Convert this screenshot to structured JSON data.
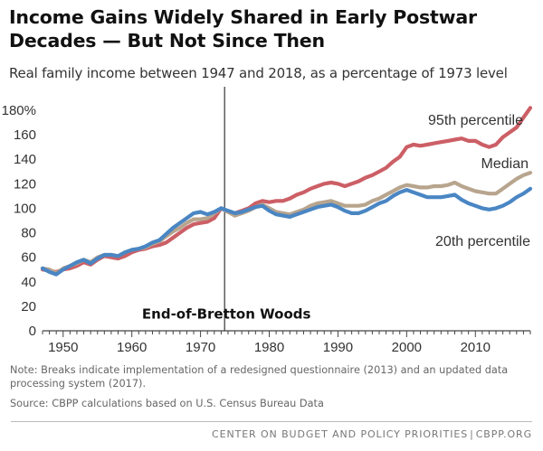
{
  "header": {
    "title": "Income Gains Widely Shared in Early Postwar Decades — But Not Since Then",
    "subtitle": "Real family income between 1947 and 2018, as a percentage of 1973 level"
  },
  "footer": {
    "note": "Note: Breaks indicate implementation of a redesigned questionnaire (2013) and an updated data processing system (2017).",
    "source": "Source: CBPP calculations based on U.S. Census Bureau Data",
    "org": "CENTER ON BUDGET AND POLICY PRIORITIES",
    "site": "CBPP.ORG",
    "separator": "|"
  },
  "colors": {
    "p95": "#cc5f66",
    "median": "#b8a58e",
    "p20": "#4a86c3",
    "axis": "#444444",
    "marker": "#333333"
  },
  "chart_data": {
    "type": "line",
    "title": "Income Gains Widely Shared in Early Postwar Decades — But Not Since Then",
    "subtitle": "Real family income between 1947 and 2018, as a percentage of 1973 level",
    "xlabel": "",
    "ylabel": "",
    "xlim": [
      1947,
      2018
    ],
    "ylim": [
      0,
      180
    ],
    "grid": false,
    "x_ticks": [
      1950,
      1960,
      1970,
      1980,
      1990,
      2000,
      2010
    ],
    "x_tick_labels": [
      "1950",
      "1960",
      "1970",
      "1980",
      "1990",
      "2000",
      "2010"
    ],
    "y_ticks": [
      0,
      20,
      40,
      60,
      80,
      100,
      120,
      140,
      160,
      180
    ],
    "y_tick_labels": [
      "0",
      "20",
      "40",
      "60",
      "80",
      "100",
      "120",
      "140",
      "160",
      "180%"
    ],
    "x": [
      1947,
      1948,
      1949,
      1950,
      1951,
      1952,
      1953,
      1954,
      1955,
      1956,
      1957,
      1958,
      1959,
      1960,
      1961,
      1962,
      1963,
      1964,
      1965,
      1966,
      1967,
      1968,
      1969,
      1970,
      1971,
      1972,
      1973,
      1974,
      1975,
      1976,
      1977,
      1978,
      1979,
      1980,
      1981,
      1982,
      1983,
      1984,
      1985,
      1986,
      1987,
      1988,
      1989,
      1990,
      1991,
      1992,
      1993,
      1994,
      1995,
      1996,
      1997,
      1998,
      1999,
      2000,
      2001,
      2002,
      2003,
      2004,
      2005,
      2006,
      2007,
      2008,
      2009,
      2010,
      2011,
      2012,
      2013,
      2014,
      2015,
      2016,
      2017,
      2018
    ],
    "series": [
      {
        "name": "95th percentile",
        "values": [
          50,
          49,
          48,
          50,
          51,
          53,
          56,
          54,
          58,
          61,
          60,
          59,
          61,
          64,
          66,
          67,
          69,
          70,
          72,
          76,
          80,
          84,
          87,
          88,
          89,
          92,
          100,
          97,
          96,
          98,
          100,
          104,
          106,
          105,
          106,
          106,
          108,
          111,
          113,
          116,
          118,
          120,
          121,
          120,
          118,
          120,
          122,
          125,
          127,
          130,
          133,
          138,
          142,
          150,
          152,
          151,
          152,
          153,
          154,
          155,
          156,
          157,
          155,
          155,
          152,
          150,
          152,
          158,
          162,
          166,
          174,
          182
        ]
      },
      {
        "name": "Median",
        "values": [
          51,
          50,
          47,
          51,
          53,
          55,
          58,
          56,
          60,
          62,
          62,
          61,
          64,
          66,
          67,
          68,
          71,
          73,
          77,
          81,
          84,
          88,
          91,
          91,
          92,
          96,
          100,
          97,
          94,
          96,
          98,
          101,
          103,
          100,
          97,
          96,
          95,
          97,
          99,
          102,
          104,
          105,
          106,
          104,
          102,
          102,
          102,
          103,
          106,
          108,
          111,
          114,
          117,
          119,
          118,
          117,
          117,
          118,
          118,
          119,
          121,
          118,
          116,
          114,
          113,
          112,
          112,
          116,
          120,
          124,
          127,
          129
        ]
      },
      {
        "name": "20th percentile",
        "values": [
          51,
          48,
          46,
          50,
          53,
          56,
          58,
          55,
          59,
          62,
          62,
          61,
          64,
          66,
          67,
          69,
          72,
          74,
          79,
          84,
          88,
          92,
          96,
          97,
          95,
          97,
          100,
          98,
          96,
          97,
          99,
          101,
          102,
          98,
          95,
          94,
          93,
          95,
          97,
          99,
          101,
          102,
          103,
          101,
          98,
          96,
          96,
          98,
          101,
          104,
          106,
          110,
          113,
          115,
          113,
          111,
          109,
          109,
          109,
          110,
          111,
          107,
          104,
          102,
          100,
          99,
          100,
          102,
          105,
          109,
          112,
          116
        ]
      }
    ],
    "annotations": [
      {
        "text": "End-of-Bretton Woods",
        "x": 1973.5,
        "kind": "vertical-line"
      },
      {
        "text": "95th percentile",
        "series": "95th percentile"
      },
      {
        "text": "Median",
        "series": "Median"
      },
      {
        "text": "20th percentile",
        "series": "20th percentile"
      }
    ]
  }
}
